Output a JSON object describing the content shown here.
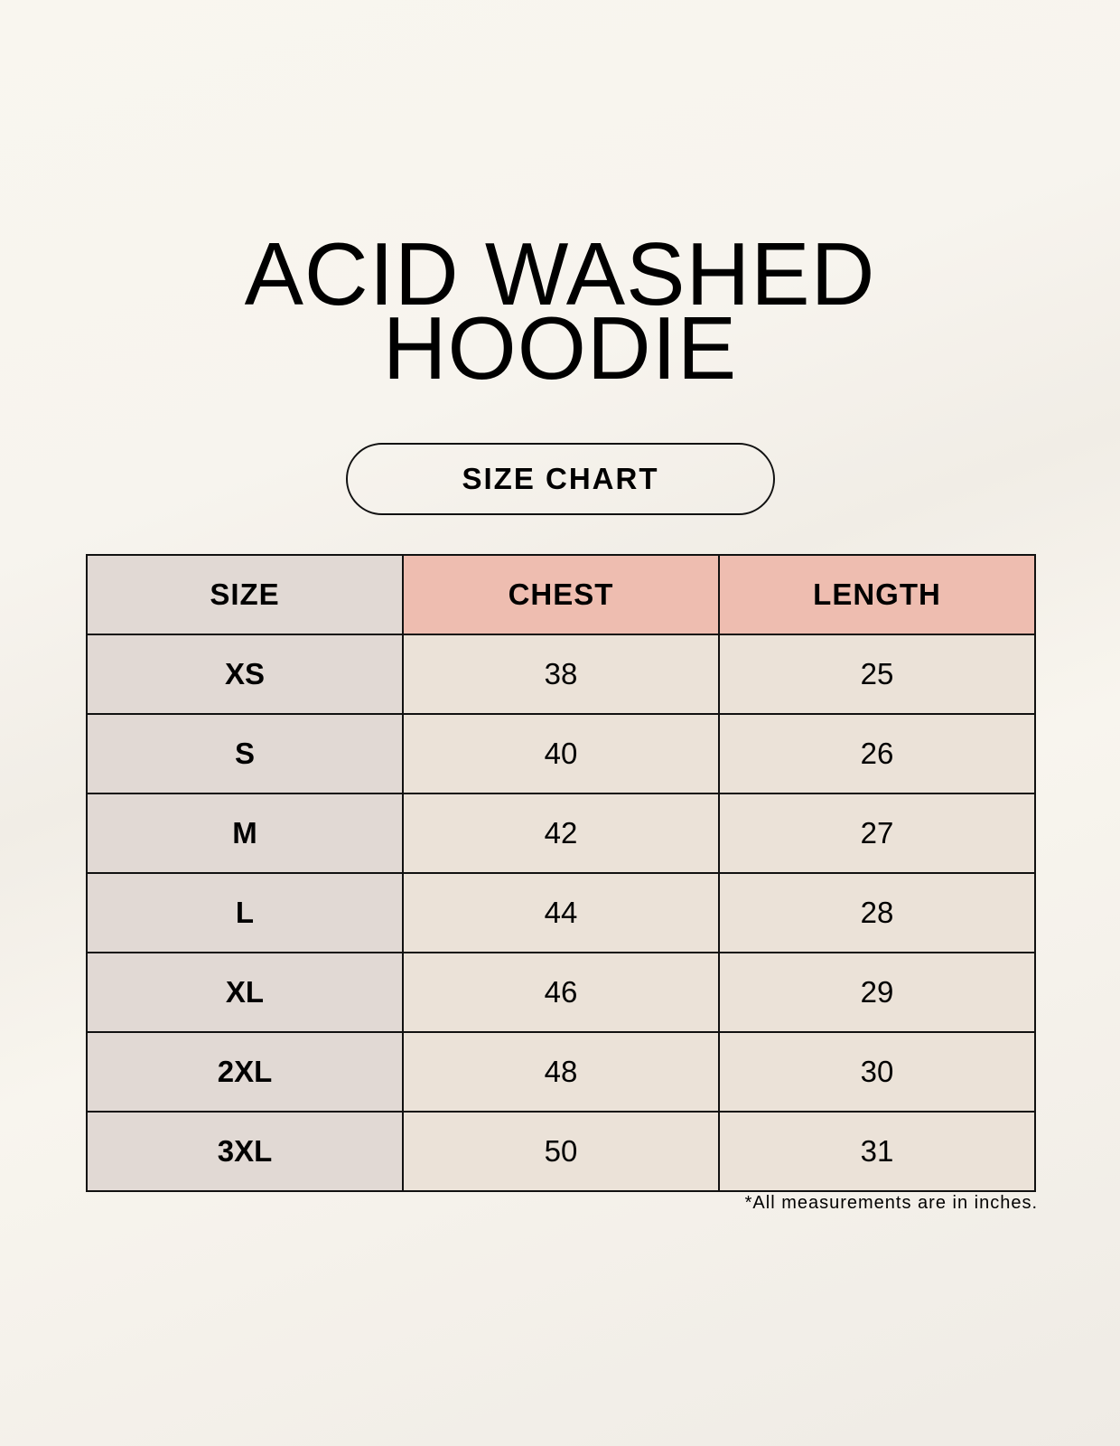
{
  "title_lines": [
    "ACID WASHED",
    "HOODIE"
  ],
  "subtitle": "SIZE CHART",
  "table": {
    "headers": [
      "SIZE",
      "CHEST",
      "LENGTH"
    ],
    "rows": [
      [
        "XS",
        "38",
        "25"
      ],
      [
        "S",
        "40",
        "26"
      ],
      [
        "M",
        "42",
        "27"
      ],
      [
        "L",
        "44",
        "28"
      ],
      [
        "XL",
        "46",
        "29"
      ],
      [
        "2XL",
        "48",
        "30"
      ],
      [
        "3XL",
        "50",
        "31"
      ]
    ]
  },
  "footnote": "*All measurements are in inches.",
  "colors": {
    "size_column": "#e1d9d4",
    "header_accent": "#eebdb0",
    "cell": "#ebe2d8"
  }
}
